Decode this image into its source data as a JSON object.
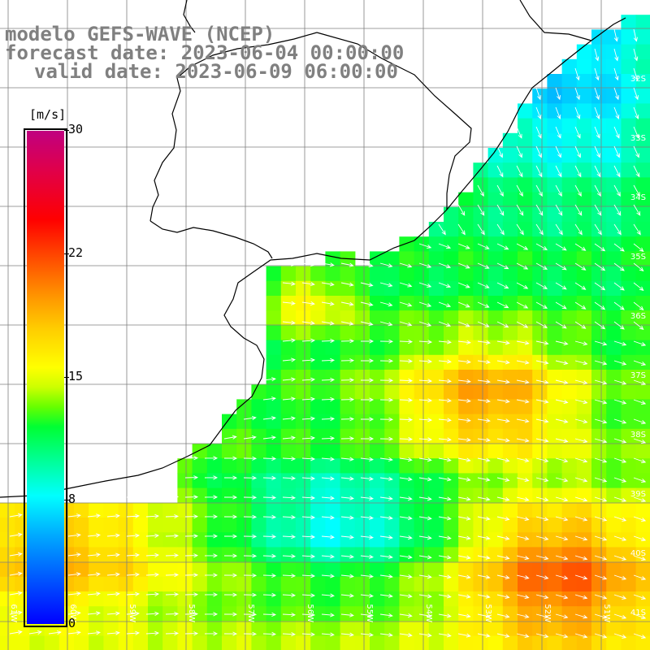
{
  "title": {
    "line1": "modelo GEFS-WAVE (NCEP)",
    "line2": "forecast date: 2023-06-04 00:00:00",
    "line3": "valid date: 2023-06-09 06:00:00"
  },
  "colorbar": {
    "unit": "[m/s]",
    "ticks": [
      "30",
      "22",
      "15",
      "8",
      "0"
    ],
    "tick_values": [
      30,
      22,
      15,
      8,
      0
    ],
    "min": 0,
    "max": 30
  },
  "map": {
    "lat_labels": [
      "32S",
      "33S",
      "34S",
      "35S",
      "36S",
      "37S",
      "38S",
      "39S",
      "40S",
      "41S"
    ],
    "lon_labels": [
      "61W",
      "60W",
      "59W",
      "58W",
      "57W",
      "56W",
      "55W",
      "54W",
      "53W",
      "52W",
      "51W"
    ],
    "vector_color": "#ffffff",
    "grid_color": "#7f7f7f",
    "coast_color": "#000000"
  }
}
